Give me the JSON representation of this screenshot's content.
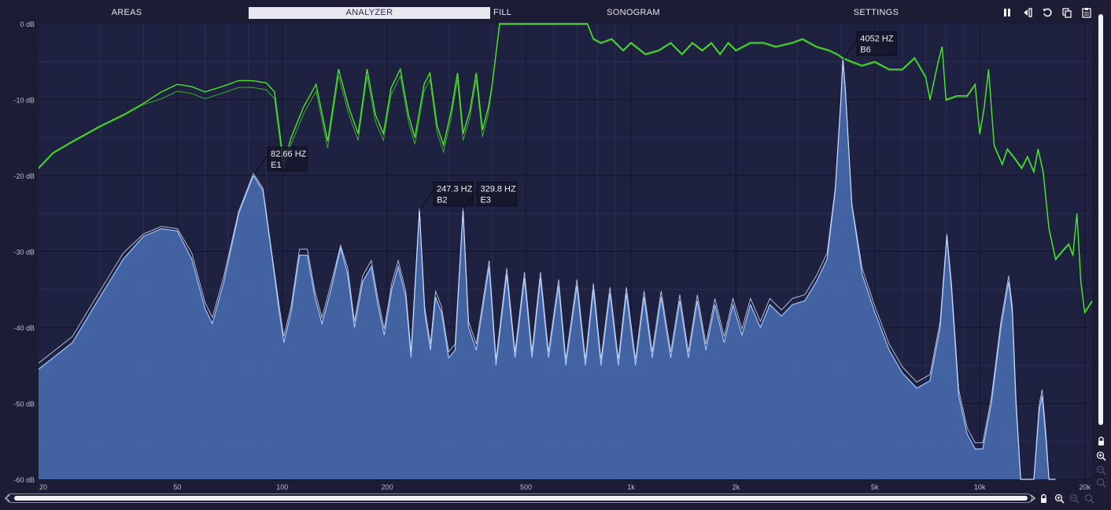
{
  "tabs": [
    {
      "label": "AREAS",
      "active": false
    },
    {
      "label": "ANALYZER",
      "active": true
    },
    {
      "label": "FILL",
      "active": false
    },
    {
      "label": "SONOGRAM",
      "active": false
    },
    {
      "label": "SETTINGS",
      "active": false
    }
  ],
  "toolbar_icons": [
    "pause-icon",
    "export-icon",
    "reset-icon",
    "copy-icon",
    "paste-icon"
  ],
  "colors": {
    "background": "#1c1d35",
    "plot_background": "#1f2140",
    "grid": "#2c2f55",
    "grid_major": "#13142a",
    "spectrum_fill": "#4668aa",
    "spectrum_line": "#9fc4ff",
    "peak_line": "#dfe8ff",
    "green_curve": "#4be52b"
  },
  "analyzer": {
    "y_axis_labels": [
      "0 dB",
      "-10 dB",
      "-20 dB",
      "-30 dB",
      "-40 dB",
      "-50 dB",
      "-60 dB"
    ],
    "x_axis_labels": [
      "20",
      "50",
      "100",
      "200",
      "500",
      "1k",
      "2k",
      "5k",
      "10k",
      "20k"
    ],
    "peak_markers": [
      {
        "freq": "82.66 HZ",
        "note": "E1",
        "f": 82.66,
        "db": -20.0
      },
      {
        "freq": "247.3 HZ",
        "note": "B2",
        "f": 247.3,
        "db": -24.6
      },
      {
        "freq": "329.8 HZ",
        "note": "E3",
        "f": 329.8,
        "db": -24.6
      },
      {
        "freq": "4052 HZ",
        "note": "B6",
        "f": 4052,
        "db": -4.8
      }
    ],
    "spectrum_points": [
      [
        20,
        -45.5
      ],
      [
        25,
        -42
      ],
      [
        30,
        -36
      ],
      [
        35,
        -31
      ],
      [
        40,
        -28
      ],
      [
        45,
        -27
      ],
      [
        50,
        -27.3
      ],
      [
        55,
        -31
      ],
      [
        60,
        -37.5
      ],
      [
        63,
        -39.5
      ],
      [
        68,
        -34
      ],
      [
        75,
        -25
      ],
      [
        82.66,
        -20
      ],
      [
        88,
        -22
      ],
      [
        93,
        -30
      ],
      [
        98,
        -38
      ],
      [
        101,
        -42
      ],
      [
        106,
        -38
      ],
      [
        112,
        -30.5
      ],
      [
        118,
        -30.5
      ],
      [
        124,
        -36
      ],
      [
        130,
        -39.5
      ],
      [
        138,
        -35
      ],
      [
        147,
        -29.5
      ],
      [
        154,
        -33
      ],
      [
        161,
        -40
      ],
      [
        170,
        -34
      ],
      [
        180,
        -32
      ],
      [
        188,
        -37
      ],
      [
        196,
        -41
      ],
      [
        206,
        -35
      ],
      [
        215,
        -32
      ],
      [
        226,
        -36
      ],
      [
        234,
        -44
      ],
      [
        247.3,
        -24.6
      ],
      [
        256,
        -38
      ],
      [
        266,
        -43
      ],
      [
        275,
        -36
      ],
      [
        286,
        -38
      ],
      [
        300,
        -44
      ],
      [
        313,
        -43
      ],
      [
        329.8,
        -24.6
      ],
      [
        342,
        -40
      ],
      [
        360,
        -43
      ],
      [
        392,
        -32
      ],
      [
        410,
        -45
      ],
      [
        440,
        -33
      ],
      [
        465,
        -44
      ],
      [
        495,
        -33.5
      ],
      [
        520,
        -44
      ],
      [
        550,
        -33.5
      ],
      [
        580,
        -44
      ],
      [
        620,
        -34.5
      ],
      [
        650,
        -45
      ],
      [
        700,
        -34.5
      ],
      [
        740,
        -45
      ],
      [
        780,
        -35
      ],
      [
        820,
        -45
      ],
      [
        870,
        -35.5
      ],
      [
        920,
        -45
      ],
      [
        970,
        -35.5
      ],
      [
        1030,
        -45
      ],
      [
        1090,
        -36
      ],
      [
        1150,
        -44
      ],
      [
        1220,
        -36
      ],
      [
        1300,
        -44
      ],
      [
        1380,
        -36.5
      ],
      [
        1460,
        -44
      ],
      [
        1550,
        -36.5
      ],
      [
        1640,
        -43
      ],
      [
        1740,
        -37
      ],
      [
        1850,
        -42
      ],
      [
        1960,
        -37
      ],
      [
        2080,
        -41
      ],
      [
        2200,
        -37
      ],
      [
        2350,
        -40
      ],
      [
        2500,
        -37
      ],
      [
        2700,
        -38.5
      ],
      [
        2900,
        -37
      ],
      [
        3150,
        -36.5
      ],
      [
        3400,
        -34
      ],
      [
        3650,
        -31
      ],
      [
        3850,
        -22
      ],
      [
        4000,
        -10
      ],
      [
        4052,
        -4.8
      ],
      [
        4120,
        -9
      ],
      [
        4300,
        -24
      ],
      [
        4600,
        -33
      ],
      [
        5000,
        -38
      ],
      [
        5500,
        -43
      ],
      [
        6000,
        -46
      ],
      [
        6600,
        -48
      ],
      [
        7200,
        -47
      ],
      [
        7700,
        -40
      ],
      [
        8050,
        -28
      ],
      [
        8300,
        -35
      ],
      [
        8700,
        -49
      ],
      [
        9200,
        -54
      ],
      [
        9700,
        -56
      ],
      [
        10200,
        -56
      ],
      [
        10800,
        -50
      ],
      [
        11500,
        -40
      ],
      [
        12100,
        -34
      ],
      [
        12400,
        -38
      ],
      [
        12700,
        -50
      ],
      [
        13100,
        -62
      ],
      [
        14300,
        -62
      ],
      [
        14800,
        -51
      ],
      [
        15100,
        -49
      ],
      [
        15500,
        -55
      ],
      [
        15800,
        -62
      ],
      [
        16500,
        -62
      ]
    ],
    "green_points": [
      [
        20,
        -19
      ],
      [
        22,
        -17
      ],
      [
        25,
        -15.5
      ],
      [
        30,
        -13.5
      ],
      [
        35,
        -12
      ],
      [
        40,
        -10.5
      ],
      [
        45,
        -9
      ],
      [
        50,
        -8
      ],
      [
        55,
        -8.3
      ],
      [
        60,
        -9
      ],
      [
        65,
        -8.5
      ],
      [
        70,
        -8
      ],
      [
        75,
        -7.5
      ],
      [
        82,
        -7.5
      ],
      [
        90,
        -7.8
      ],
      [
        95,
        -9
      ],
      [
        101,
        -18.5
      ],
      [
        106,
        -15
      ],
      [
        115,
        -11
      ],
      [
        125,
        -8
      ],
      [
        135,
        -15.5
      ],
      [
        145,
        -6
      ],
      [
        155,
        -11
      ],
      [
        165,
        -14.5
      ],
      [
        175,
        -6
      ],
      [
        185,
        -12
      ],
      [
        195,
        -14.5
      ],
      [
        205,
        -8.5
      ],
      [
        218,
        -6
      ],
      [
        230,
        -12
      ],
      [
        240,
        -15
      ],
      [
        255,
        -8
      ],
      [
        265,
        -6.5
      ],
      [
        278,
        -13.5
      ],
      [
        290,
        -16
      ],
      [
        305,
        -11.5
      ],
      [
        318,
        -6.5
      ],
      [
        330,
        -14.5
      ],
      [
        345,
        -11.5
      ],
      [
        360,
        -6.5
      ],
      [
        375,
        -14
      ],
      [
        390,
        -11
      ],
      [
        400,
        -8
      ],
      [
        420,
        0
      ],
      [
        450,
        0
      ],
      [
        500,
        0
      ],
      [
        550,
        0
      ],
      [
        600,
        0
      ],
      [
        650,
        0
      ],
      [
        700,
        0
      ],
      [
        750,
        0
      ],
      [
        780,
        -2
      ],
      [
        820,
        -2.5
      ],
      [
        880,
        -2
      ],
      [
        950,
        -3.5
      ],
      [
        1000,
        -2.5
      ],
      [
        1100,
        -4
      ],
      [
        1200,
        -3.5
      ],
      [
        1300,
        -2.5
      ],
      [
        1400,
        -4
      ],
      [
        1500,
        -2.5
      ],
      [
        1600,
        -3.5
      ],
      [
        1700,
        -2.5
      ],
      [
        1800,
        -4
      ],
      [
        1900,
        -2.5
      ],
      [
        2000,
        -3.5
      ],
      [
        2200,
        -2.5
      ],
      [
        2400,
        -2.5
      ],
      [
        2600,
        -3
      ],
      [
        2900,
        -2.5
      ],
      [
        3100,
        -2
      ],
      [
        3400,
        -3
      ],
      [
        3700,
        -3.5
      ],
      [
        3900,
        -4
      ],
      [
        4052,
        -4.5
      ],
      [
        4300,
        -5
      ],
      [
        4600,
        -5.5
      ],
      [
        5000,
        -5
      ],
      [
        5500,
        -6
      ],
      [
        6000,
        -6
      ],
      [
        6500,
        -4.5
      ],
      [
        7000,
        -7
      ],
      [
        7200,
        -10
      ],
      [
        7600,
        -5
      ],
      [
        7800,
        -3
      ],
      [
        8000,
        -10
      ],
      [
        8600,
        -9.5
      ],
      [
        9200,
        -9.5
      ],
      [
        9700,
        -8
      ],
      [
        10000,
        -14.5
      ],
      [
        10300,
        -11
      ],
      [
        10600,
        -6
      ],
      [
        11000,
        -16
      ],
      [
        11600,
        -18.5
      ],
      [
        12000,
        -16.5
      ],
      [
        12500,
        -17.5
      ],
      [
        13200,
        -19
      ],
      [
        13700,
        -17.5
      ],
      [
        14300,
        -19.5
      ],
      [
        14700,
        -16.5
      ],
      [
        15200,
        -19.5
      ],
      [
        15800,
        -27
      ],
      [
        16500,
        -31
      ],
      [
        17200,
        -30
      ],
      [
        18000,
        -29
      ],
      [
        18500,
        -30.5
      ],
      [
        19000,
        -25
      ],
      [
        19500,
        -34
      ],
      [
        20000,
        -38
      ],
      [
        21000,
        -36.5
      ]
    ]
  },
  "side_icons": [
    "lock-icon",
    "zoom-in-icon",
    "zoom-out-icon",
    "zoom-reset-icon"
  ],
  "bottom_icons": [
    "lock-icon",
    "zoom-in-icon",
    "zoom-out-icon",
    "zoom-reset-icon"
  ]
}
